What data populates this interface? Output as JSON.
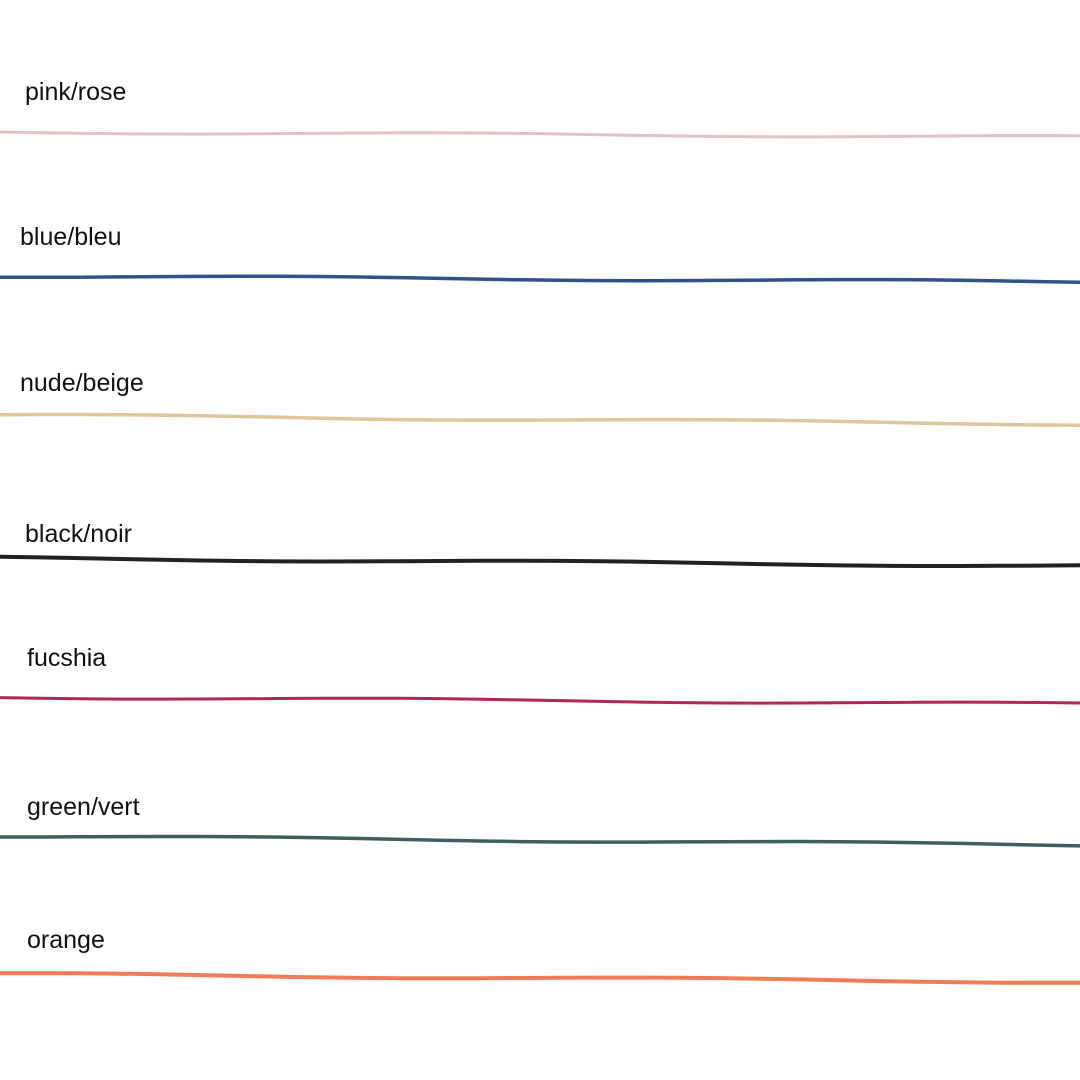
{
  "swatches": [
    {
      "label": "pink/rose",
      "color": "#e3c2c3"
    },
    {
      "label": "blue/bleu",
      "color": "#2c5287"
    },
    {
      "label": "nude/beige",
      "color": "#dfc59c"
    },
    {
      "label": "black/noir",
      "color": "#222222"
    },
    {
      "label": "fucshia",
      "color": "#b02659"
    },
    {
      "label": "green/vert",
      "color": "#3e5e60"
    },
    {
      "label": "orange",
      "color": "#f27b57"
    }
  ]
}
